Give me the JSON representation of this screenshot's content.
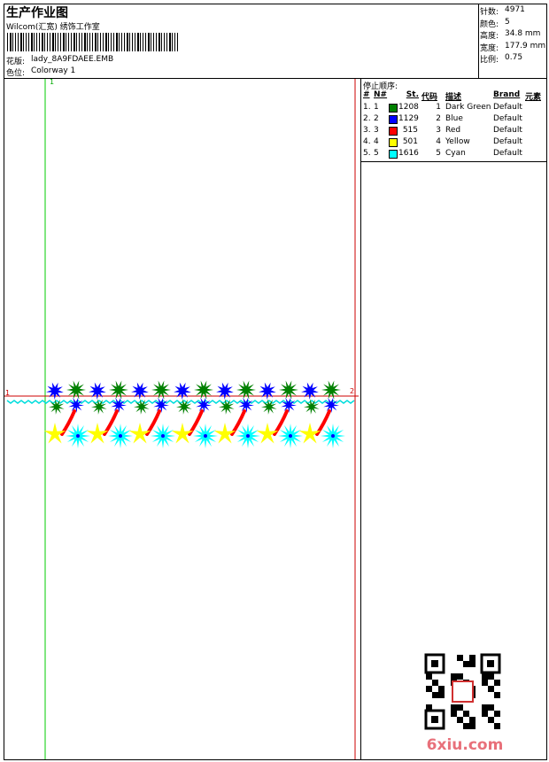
{
  "header": {
    "title": "生产作业图",
    "studio": "Wilcom(汇宽) 绣饰工作室",
    "design_label": "花版:",
    "design": "lady_8A9FDAEE.EMB",
    "colorway_label": "色位:",
    "colorway": "Colorway 1"
  },
  "info": [
    {
      "label": "针数:",
      "value": "4971"
    },
    {
      "label": "颜色:",
      "value": "5"
    },
    {
      "label": "高度:",
      "value": "34.8 mm"
    },
    {
      "label": "宽度:",
      "value": "177.9 mm"
    },
    {
      "label": "比例:",
      "value": "0.75"
    }
  ],
  "stop_sequence": {
    "title": "停止顺序:",
    "columns": [
      "#",
      "N#",
      "St.",
      "代码",
      "描述",
      "Brand",
      "元素"
    ],
    "rows": [
      {
        "index": "1.",
        "needle": "1",
        "color": "#008000",
        "stitches": "1208",
        "code": "1",
        "description": "Dark Green",
        "brand": "Default"
      },
      {
        "index": "2.",
        "needle": "2",
        "color": "#0000ff",
        "stitches": "1129",
        "code": "2",
        "description": "Blue",
        "brand": "Default"
      },
      {
        "index": "3.",
        "needle": "3",
        "color": "#ff0000",
        "stitches": "515",
        "code": "3",
        "description": "Red",
        "brand": "Default"
      },
      {
        "index": "4.",
        "needle": "4",
        "color": "#ffff00",
        "stitches": "501",
        "code": "4",
        "description": "Yellow",
        "brand": "Default"
      },
      {
        "index": "5.",
        "needle": "5",
        "color": "#00ffff",
        "stitches": "1616",
        "code": "5",
        "description": "Cyan",
        "brand": "Default"
      }
    ]
  },
  "guides": {
    "start": "1",
    "end": "2"
  },
  "watermark": "6xiu.com"
}
